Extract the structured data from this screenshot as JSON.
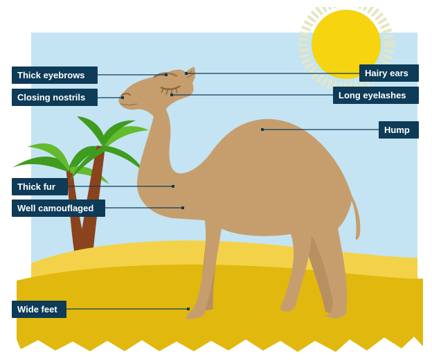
{
  "colors": {
    "sky": "#c4e4f3",
    "sun": "#f6d40f",
    "sun_rays": "#e6e6c3",
    "sand_light": "#f3d249",
    "sand_dark": "#e1b80e",
    "camel": "#c69e6d",
    "camel_dark": "#a07a50",
    "palm_leaf": "#3f9c1f",
    "palm_leaf_light": "#63bb2d",
    "palm_trunk": "#8a431d",
    "label_bg": "#0e3b57",
    "label_text": "#ffffff",
    "leader_line": "#0e3b57"
  },
  "labels": {
    "thick_eyebrows": "Thick eyebrows",
    "closing_nostrils": "Closing nostrils",
    "thick_fur": "Thick fur",
    "well_camouflaged": "Well camouflaged",
    "wide_feet": "Wide feet",
    "hairy_ears": "Hairy ears",
    "long_eyelashes": "Long eyelashes",
    "hump": "Hump"
  }
}
